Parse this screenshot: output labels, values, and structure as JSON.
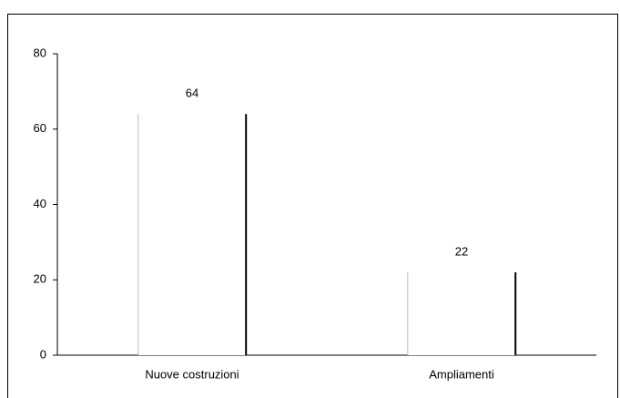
{
  "chart_data": {
    "type": "bar",
    "categories": [
      "Nuove costruzioni",
      "Ampliamenti"
    ],
    "values": [
      64,
      22
    ],
    "ylim": [
      0,
      80
    ],
    "yticks": [
      0,
      20,
      40,
      60,
      80
    ],
    "grid": false
  }
}
